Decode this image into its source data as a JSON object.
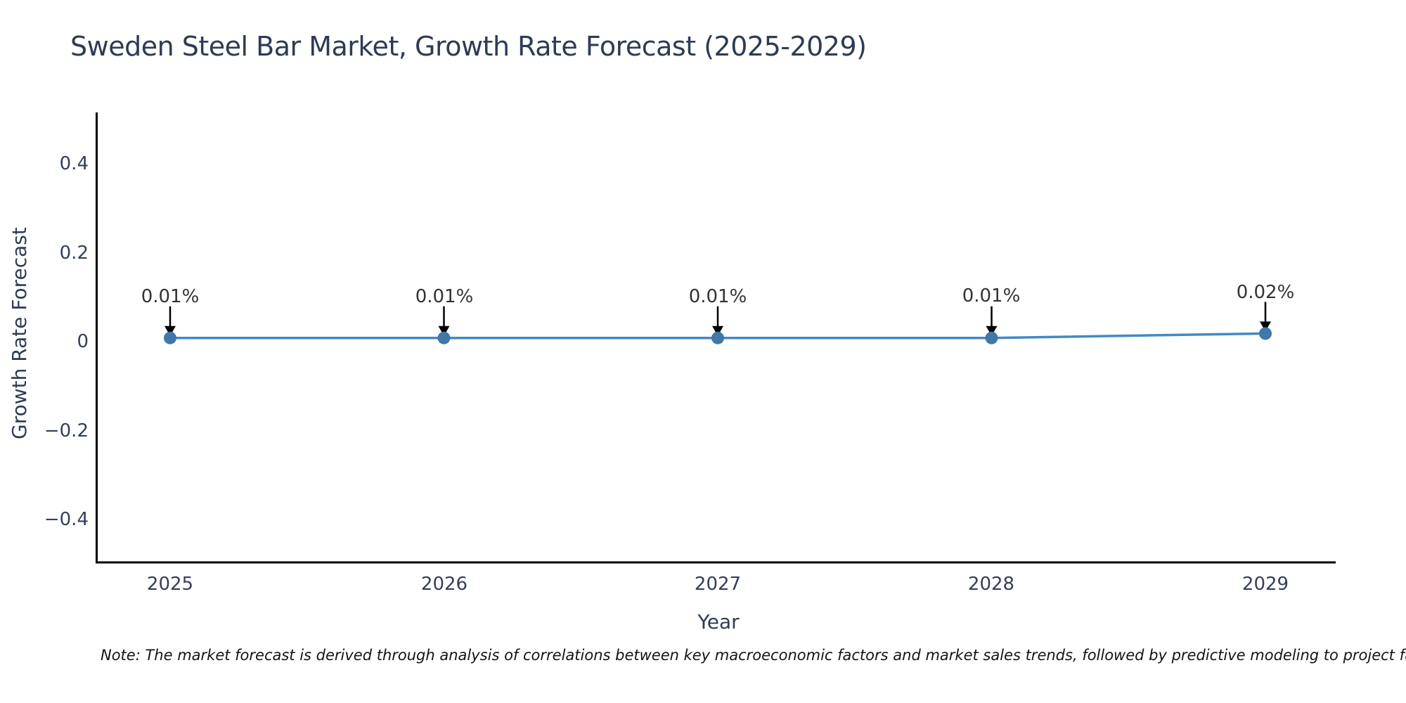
{
  "title": "Sweden Steel Bar Market, Growth Rate Forecast (2025-2029)",
  "footnote": "Note: The market forecast is derived through analysis of correlations between key macroeconomic factors and market sales trends, followed by predictive modeling to project future sa",
  "chart_data": {
    "type": "line",
    "title": "Sweden Steel Bar Market, Growth Rate Forecast (2025-2029)",
    "xlabel": "Year",
    "ylabel": "Growth Rate Forecast",
    "x": [
      2025,
      2026,
      2027,
      2028,
      2029
    ],
    "values": [
      0.01,
      0.01,
      0.01,
      0.01,
      0.02
    ],
    "point_labels": [
      "0.01%",
      "0.01%",
      "0.01%",
      "0.01%",
      "0.02%"
    ],
    "ytick_labels": [
      "0.4",
      "0.2",
      "0",
      "−0.2",
      "−0.4"
    ],
    "yticks": [
      0.4,
      0.2,
      0,
      -0.2,
      -0.4
    ],
    "ylim": [
      -0.5,
      0.52
    ],
    "grid": false,
    "legend": "none",
    "colors": {
      "line": "#4389c4",
      "marker": "#4177a9",
      "axis": "#000000",
      "labels": "#2e3b54",
      "annotation_text": "#333333",
      "arrow": "#000000"
    }
  }
}
